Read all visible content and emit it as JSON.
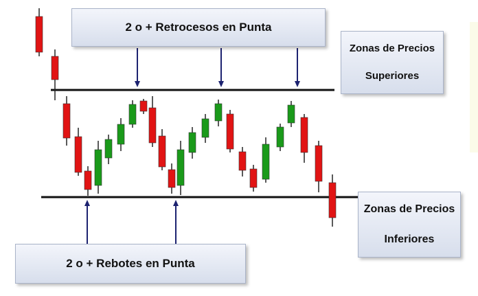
{
  "labels": {
    "top_banner": "2 o + Retrocesos en Punta",
    "bottom_banner": "2 o + Rebotes en Punta",
    "upper_zone": [
      "Zonas de Precios",
      "Superiores"
    ],
    "lower_zone": [
      "Zonas de Precios",
      "Inferiores"
    ]
  },
  "colors": {
    "bearish": "#e11414",
    "bullish": "#1a9a1a",
    "level_line": "#111111",
    "arrow": "#1c2270",
    "wick": "#222222"
  },
  "diagram": {
    "resistance_level": "upper horizontal line",
    "support_level": "lower horizontal line",
    "retracement_arrows": 3,
    "bounce_arrows": 2
  }
}
